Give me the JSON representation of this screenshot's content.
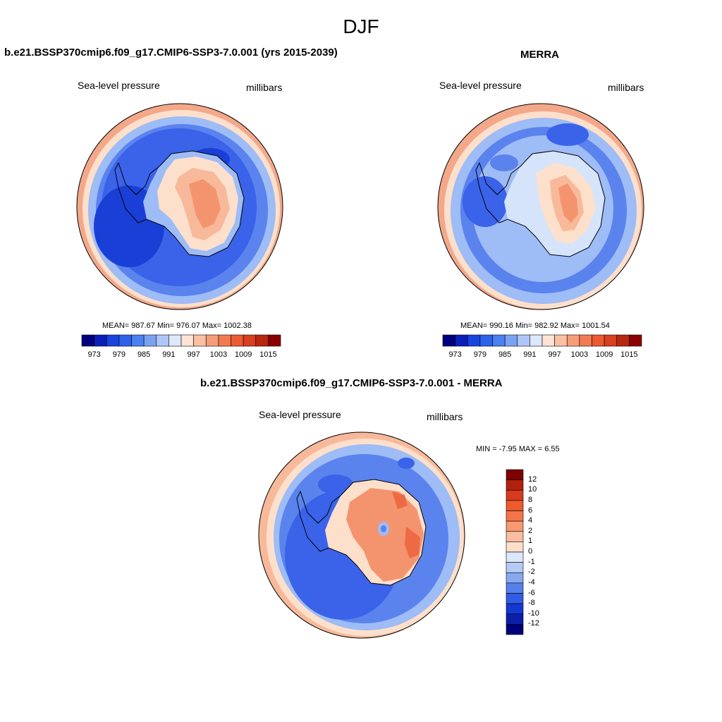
{
  "season": "DJF",
  "panels": [
    {
      "title": "b.e21.BSSP370cmip6.f09_g17.CMIP6-SSP3-7.0.001 (yrs 2015-2039)",
      "variable": "Sea-level pressure",
      "units": "millibars",
      "stats": "MEAN= 987.67  Min= 976.07  Max= 1002.38"
    },
    {
      "title": "MERRA",
      "variable": "Sea-level pressure",
      "units": "millibars",
      "stats": "MEAN= 990.16  Min= 982.92  Max= 1001.54"
    },
    {
      "title": "b.e21.BSSP370cmip6.f09_g17.CMIP6-SSP3-7.0.001 - MERRA",
      "variable": "Sea-level pressure",
      "units": "millibars",
      "stats": "MIN =  -7.95 MAX =   6.55"
    }
  ],
  "colorbar_abs": {
    "ticks": [
      "973",
      "979",
      "985",
      "991",
      "997",
      "1003",
      "1009",
      "1015"
    ],
    "colors": [
      "#00007f",
      "#0a1fb8",
      "#1a44e0",
      "#2d62ea",
      "#4b80f0",
      "#7aa2f3",
      "#aec6f7",
      "#dce8fb",
      "#fde3d4",
      "#f9c0a2",
      "#f59d78",
      "#f17a52",
      "#eb5a31",
      "#d8401f",
      "#b8270f",
      "#8b0000"
    ]
  },
  "colorbar_diff": {
    "labels": [
      "12",
      "10",
      "8",
      "6",
      "4",
      "2",
      "1",
      "0",
      "-1",
      "-2",
      "-4",
      "-6",
      "-8",
      "-10",
      "-12"
    ],
    "colors": [
      "#7f0000",
      "#b3200e",
      "#d83a1c",
      "#ee5a2b",
      "#f4754a",
      "#f79a72",
      "#f9bd9f",
      "#fde0cc",
      "#dbe7fb",
      "#b5cbf6",
      "#86a9f1",
      "#5581ec",
      "#2f5de6",
      "#1339d3",
      "#0b1fa8",
      "#00007a"
    ]
  },
  "map_colors": {
    "deep_blue": "#1a3fd6",
    "blue": "#3a63ea",
    "mid_blue": "#5a83ee",
    "light_blue": "#9ebcf5",
    "pale_blue": "#d6e4fb",
    "pale_orange": "#fde0cc",
    "light_orange": "#f8b99a",
    "orange": "#f4946e",
    "deep_orange": "#ee6a44"
  }
}
